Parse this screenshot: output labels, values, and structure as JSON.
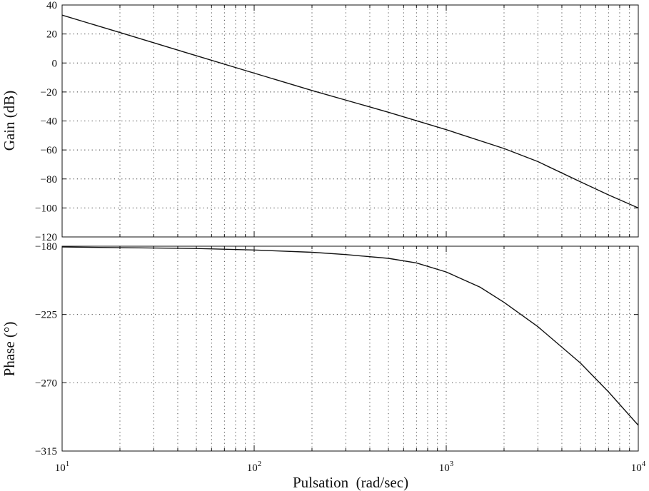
{
  "chart_data": [
    {
      "type": "line",
      "name": "gain-plot",
      "xscale": "log",
      "xlim": [
        10,
        10000
      ],
      "ylim": [
        -120,
        40
      ],
      "yticks": [
        40,
        20,
        0,
        -20,
        -40,
        -60,
        -80,
        -100,
        -120
      ],
      "ytick_labels": [
        "40",
        "20",
        "0",
        "−20",
        "−40",
        "−60",
        "−80",
        "−100",
        "−120"
      ],
      "ylabel": "Gain (dB)",
      "xlabel": "",
      "grid": true,
      "series": [
        {
          "x": [
            10,
            20,
            50,
            100,
            200,
            500,
            1000,
            2000,
            3000,
            5000,
            7000,
            10000
          ],
          "y": [
            33,
            21,
            5,
            -7,
            -19,
            -34,
            -46,
            -59,
            -68,
            -82,
            -91,
            -100
          ]
        }
      ]
    },
    {
      "type": "line",
      "name": "phase-plot",
      "xscale": "log",
      "xlim": [
        10,
        10000
      ],
      "ylim": [
        -315,
        -180
      ],
      "yticks": [
        -180,
        -225,
        -270,
        -315
      ],
      "ytick_labels": [
        "−180",
        "−225",
        "−270",
        "−315"
      ],
      "ylabel": "Phase (°)",
      "xlabel": "Pulsation  (rad/sec)",
      "xticks": [
        {
          "value": 10,
          "base": "10",
          "exp": "1"
        },
        {
          "value": 100,
          "base": "10",
          "exp": "2"
        },
        {
          "value": 1000,
          "base": "10",
          "exp": "3"
        },
        {
          "value": 10000,
          "base": "10",
          "exp": "4"
        }
      ],
      "grid": true,
      "series": [
        {
          "x": [
            10,
            50,
            100,
            200,
            300,
            500,
            700,
            1000,
            1500,
            2000,
            3000,
            5000,
            7000,
            10000
          ],
          "y": [
            -180.5,
            -181.5,
            -182.5,
            -184,
            -185.5,
            -188,
            -191,
            -197,
            -207,
            -217,
            -233,
            -257,
            -276,
            -298
          ]
        }
      ]
    }
  ]
}
